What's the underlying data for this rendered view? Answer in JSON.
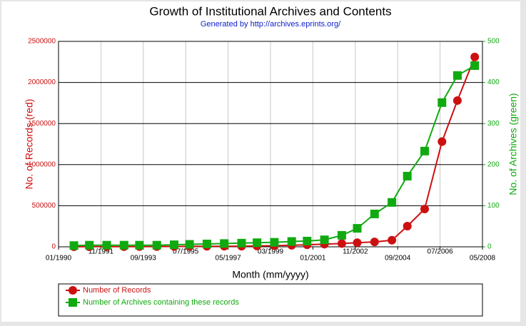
{
  "chart_data": {
    "type": "line",
    "title": "Growth of Institutional Archives and Contents",
    "subtitle": "Generated by http://archives.eprints.org/",
    "x_label": "Month (mm/yyyy)",
    "y_label": "No. of Records (red)",
    "y2_label": "No. of Archives (green)",
    "x": [
      "09/1990",
      "05/1991",
      "02/1992",
      "11/1992",
      "07/1993",
      "04/1994",
      "01/1995",
      "09/1995",
      "06/1996",
      "03/1997",
      "12/1997",
      "08/1998",
      "05/1999",
      "02/2000",
      "10/2000",
      "07/2001",
      "04/2002",
      "12/2002",
      "09/2003",
      "06/2004",
      "02/2005",
      "11/2005",
      "08/2006",
      "04/2007",
      "01/2008"
    ],
    "xlim": [
      "01/1990",
      "05/2008"
    ],
    "xticks": [
      "01/1990",
      "11/1991",
      "09/1993",
      "07/1995",
      "05/1997",
      "03/1999",
      "01/2001",
      "11/2002",
      "09/2004",
      "07/2006",
      "05/2008"
    ],
    "ylim": [
      0,
      2500000
    ],
    "yticks": [
      0,
      500000,
      1000000,
      1500000,
      2000000,
      2500000
    ],
    "y2lim": [
      0,
      500
    ],
    "y2ticks": [
      0,
      100,
      200,
      300,
      400,
      500
    ],
    "grid": true,
    "legend": "bottom",
    "series": [
      {
        "name": "Number of Records",
        "color": "#cc1010",
        "values": [
          1000,
          1500,
          2000,
          2500,
          3000,
          3500,
          4000,
          5000,
          6000,
          7000,
          8000,
          10000,
          14000,
          18000,
          25000,
          32000,
          40000,
          50000,
          60000,
          80000,
          252000,
          460000,
          1280000,
          1780000,
          2310000
        ]
      },
      {
        "name": "Number of Archives containing these records",
        "color": "#10aa10",
        "axis": "y2",
        "values": [
          3,
          4,
          4,
          4,
          4,
          4,
          5,
          6,
          7,
          8,
          9,
          10,
          11,
          13,
          14,
          17,
          28,
          45,
          80,
          108,
          172,
          233,
          351,
          417,
          441
        ]
      }
    ]
  }
}
